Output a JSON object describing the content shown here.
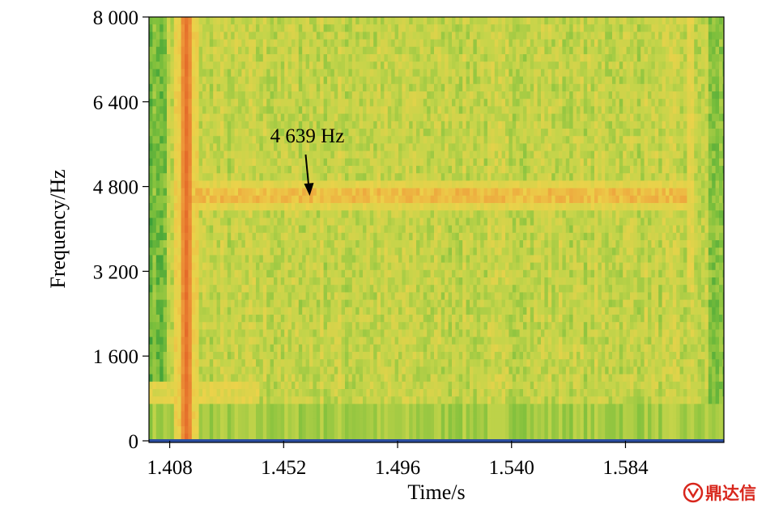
{
  "chart_data": {
    "type": "heatmap",
    "title": "",
    "xlabel": "Time/s",
    "ylabel": "Frequency/Hz",
    "xlim": [
      1.4,
      1.622
    ],
    "ylim": [
      0,
      8000
    ],
    "x_ticks": [
      1.408,
      1.452,
      1.496,
      1.54,
      1.584
    ],
    "x_tick_labels": [
      "1.408",
      "1.452",
      "1.496",
      "1.540",
      "1.584"
    ],
    "y_ticks": [
      0,
      1600,
      3200,
      4800,
      6400,
      8000
    ],
    "y_tick_labels": [
      "0",
      "1 600",
      "3 200",
      "4 800",
      "6 400",
      "8 000"
    ],
    "colormap": [
      "#2e9a38",
      "#7cbf3c",
      "#c4d44a",
      "#ecd24a",
      "#ee9a3a",
      "#e05a24"
    ],
    "features": [
      {
        "kind": "vertical_band",
        "x": 1.4145,
        "intensity": 0.9
      },
      {
        "kind": "horizontal_band",
        "y": 4639,
        "x_range": [
          1.413,
          1.608
        ],
        "intensity": 0.75
      },
      {
        "kind": "horizontal_band",
        "y": 900,
        "x_range": [
          1.4,
          1.443
        ],
        "intensity": 0.6
      },
      {
        "kind": "right_edge_feature",
        "x": 1.609,
        "y_range": [
          2800,
          8000
        ],
        "intensity": 0.5
      }
    ],
    "annotations": [
      {
        "text": "4 639 Hz",
        "x": 1.4605,
        "y": 4639
      }
    ],
    "grid": false,
    "legend": "none"
  },
  "watermark": {
    "text": "鼎达信"
  },
  "colors": {
    "baseline": "#2b4fa0",
    "axis": "#000000"
  }
}
